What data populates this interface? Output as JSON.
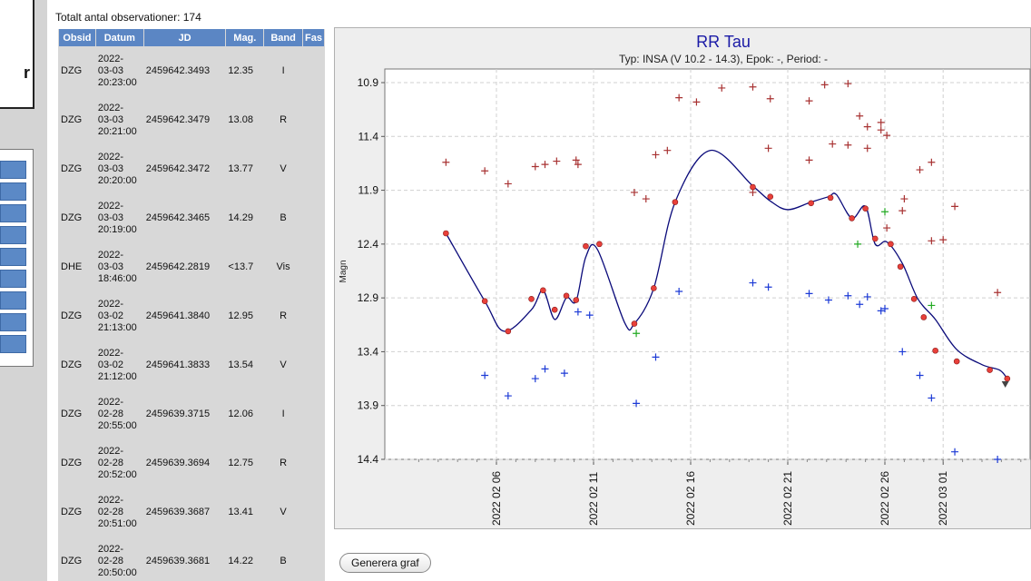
{
  "obs_count": "Totalt antal observationer: 174",
  "left_letter": "r",
  "table": {
    "headers": [
      "Obsid",
      "Datum",
      "JD",
      "Mag.",
      "Band",
      "Fas"
    ],
    "rows": [
      {
        "obsid": "DZG",
        "date": [
          "2022-",
          "03-03",
          "20:23:00"
        ],
        "jd": "2459642.3493",
        "mag": "12.35",
        "band": "I"
      },
      {
        "obsid": "DZG",
        "date": [
          "2022-",
          "03-03",
          "20:21:00"
        ],
        "jd": "2459642.3479",
        "mag": "13.08",
        "band": "R"
      },
      {
        "obsid": "DZG",
        "date": [
          "2022-",
          "03-03",
          "20:20:00"
        ],
        "jd": "2459642.3472",
        "mag": "13.77",
        "band": "V"
      },
      {
        "obsid": "DZG",
        "date": [
          "2022-",
          "03-03",
          "20:19:00"
        ],
        "jd": "2459642.3465",
        "mag": "14.29",
        "band": "B"
      },
      {
        "obsid": "DHE",
        "date": [
          "2022-",
          "03-03",
          "18:46:00"
        ],
        "jd": "2459642.2819",
        "mag": "<13.7",
        "band": "Vis"
      },
      {
        "obsid": "DZG",
        "date": [
          "2022-",
          "03-02",
          "21:13:00"
        ],
        "jd": "2459641.3840",
        "mag": "12.95",
        "band": "R"
      },
      {
        "obsid": "DZG",
        "date": [
          "2022-",
          "03-02",
          "21:12:00"
        ],
        "jd": "2459641.3833",
        "mag": "13.54",
        "band": "V"
      },
      {
        "obsid": "DZG",
        "date": [
          "2022-",
          "02-28",
          "20:55:00"
        ],
        "jd": "2459639.3715",
        "mag": "12.06",
        "band": "I"
      },
      {
        "obsid": "DZG",
        "date": [
          "2022-",
          "02-28",
          "20:52:00"
        ],
        "jd": "2459639.3694",
        "mag": "12.75",
        "band": "R"
      },
      {
        "obsid": "DZG",
        "date": [
          "2022-",
          "02-28",
          "20:51:00"
        ],
        "jd": "2459639.3687",
        "mag": "13.41",
        "band": "V"
      },
      {
        "obsid": "DZG",
        "date": [
          "2022-",
          "02-28",
          "20:50:00"
        ],
        "jd": "2459639.3681",
        "mag": "14.22",
        "band": "B"
      }
    ]
  },
  "chart_data": {
    "type": "scatter",
    "title": "RR Tau",
    "subtitle": "Typ: INSA (V 10.2 - 14.3), Epok: -, Period: -",
    "ylabel": "Magn",
    "ylim": [
      10.9,
      14.4
    ],
    "yticks": [
      "10.9",
      "11.4",
      "11.9",
      "12.4",
      "12.9",
      "13.4",
      "13.9",
      "14.4"
    ],
    "xticks": [
      "2022 02 06",
      "2022 02 11",
      "2022 02 16",
      "2022 02 21",
      "2022 02 26",
      "2022 03 01"
    ],
    "xlim": [
      "2022-02-03",
      "2022-03-04"
    ],
    "grid": true,
    "colors": {
      "title": "#1a1aa6",
      "I": "#a83232",
      "V": "#22aa22",
      "B": "#1c3ad6",
      "fit": "#0a0a7a",
      "visual": "#7a1a1a",
      "vis_limit": "#444444"
    },
    "series": [
      {
        "band": "I",
        "x": [
          3.4,
          5.4,
          6.6,
          8.5,
          10.2,
          13.7,
          14.2,
          15.4,
          19.2,
          20.1,
          22.1,
          22.9,
          24.1,
          25.1,
          25.8,
          26.1,
          26.9,
          28.4,
          29.0
        ],
        "y": [
          11.64,
          11.72,
          11.84,
          11.66,
          11.66,
          11.98,
          11.57,
          11.04,
          10.94,
          11.05,
          11.07,
          10.92,
          10.91,
          11.31,
          11.34,
          12.25,
          12.09,
          12.37,
          12.36
        ]
      },
      {
        "band": "I",
        "x": [
          8.0,
          9.1,
          10.1,
          13.1,
          14.8,
          16.3,
          17.6,
          19.2,
          20.0,
          22.1,
          23.3,
          24.1,
          24.7,
          25.1,
          25.8,
          26.1,
          27.0,
          27.8,
          28.4,
          29.6,
          31.8
        ],
        "y": [
          11.68,
          11.63,
          11.62,
          11.92,
          11.53,
          11.08,
          10.95,
          11.92,
          11.51,
          11.62,
          11.47,
          11.48,
          11.21,
          11.51,
          11.27,
          11.39,
          11.98,
          11.71,
          11.64,
          12.05,
          12.85
        ]
      },
      {
        "band": "V",
        "x": [
          13.2,
          24.6,
          26.0,
          28.4
        ],
        "y": [
          13.23,
          12.4,
          12.1,
          12.97
        ]
      },
      {
        "band": "B",
        "x": [
          5.4,
          6.6,
          8.0,
          8.5,
          9.5,
          10.2,
          10.8,
          13.2,
          14.2,
          15.4,
          19.2,
          20.0,
          22.1,
          23.1,
          24.1,
          24.7,
          25.1,
          25.8,
          26.0,
          26.9,
          27.8,
          28.4,
          29.6,
          31.8
        ],
        "y": [
          13.62,
          13.81,
          13.65,
          13.56,
          13.6,
          13.03,
          13.06,
          13.88,
          13.45,
          12.84,
          12.76,
          12.8,
          12.86,
          12.92,
          12.88,
          12.96,
          12.89,
          13.02,
          13.0,
          13.4,
          13.62,
          13.83,
          14.33,
          14.4
        ]
      },
      {
        "band": "R",
        "x": [
          3.4,
          5.4,
          6.6,
          7.8,
          8.4,
          9.0,
          9.6,
          10.1,
          10.6,
          11.3,
          13.1,
          14.1,
          15.2,
          19.2,
          20.1,
          22.2,
          23.2,
          24.3,
          25.0,
          25.5,
          26.3,
          26.8,
          27.5,
          28.0,
          28.6,
          29.7,
          31.4,
          32.3
        ],
        "y": [
          12.3,
          12.93,
          13.21,
          12.91,
          12.83,
          13.01,
          12.88,
          12.92,
          12.42,
          12.4,
          13.14,
          12.81,
          12.01,
          11.87,
          11.96,
          12.02,
          11.97,
          12.16,
          12.07,
          12.35,
          12.4,
          12.61,
          12.91,
          13.08,
          13.39,
          13.49,
          13.57,
          13.65
        ]
      }
    ],
    "fit": {
      "x": [
        3.4,
        5.4,
        6.4,
        7.8,
        8.4,
        9.0,
        9.6,
        10.1,
        10.6,
        11.2,
        12.6,
        13.1,
        14.1,
        15.2,
        17.0,
        19.2,
        20.1,
        21.0,
        22.2,
        23.1,
        23.5,
        24.3,
        25.0,
        25.5,
        26.1,
        26.9,
        27.7,
        28.6,
        29.7,
        31.0,
        31.9,
        32.3
      ],
      "y": [
        12.3,
        12.93,
        13.21,
        13.01,
        12.83,
        13.1,
        12.9,
        12.93,
        12.52,
        12.45,
        13.13,
        13.14,
        12.81,
        12.01,
        11.53,
        11.86,
        12.0,
        12.08,
        12.01,
        11.96,
        11.94,
        12.16,
        12.05,
        12.4,
        12.38,
        12.58,
        12.91,
        13.1,
        13.38,
        13.52,
        13.57,
        13.65
      ]
    },
    "vis_limit": {
      "x": 32.2,
      "y": 13.7
    }
  },
  "button_label": "Generera graf"
}
